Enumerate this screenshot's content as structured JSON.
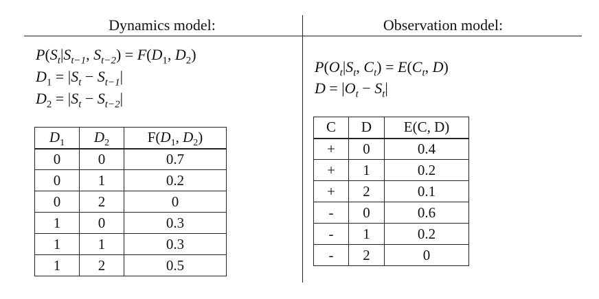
{
  "dynamics": {
    "heading": "Dynamics model:",
    "eq1": "P(St|St−1, St−2) = F(D1, D2)",
    "eq2": "D1 = |St − St−1|",
    "eq3": "D2 = |St − St−2|",
    "table": {
      "headers": [
        "D1",
        "D2",
        "F(D1, D2)"
      ],
      "rows": [
        [
          "0",
          "0",
          "0.7"
        ],
        [
          "0",
          "1",
          "0.2"
        ],
        [
          "0",
          "2",
          "0"
        ],
        [
          "1",
          "0",
          "0.3"
        ],
        [
          "1",
          "1",
          "0.3"
        ],
        [
          "1",
          "2",
          "0.5"
        ]
      ]
    }
  },
  "observation": {
    "heading": "Observation model:",
    "eq1": "P(Ot|St, Ct) = E(Ct, D)",
    "eq2": "D = |Ot − St|",
    "table": {
      "headers": [
        "C",
        "D",
        "E(C, D)"
      ],
      "rows": [
        [
          "+",
          "0",
          "0.4"
        ],
        [
          "+",
          "1",
          "0.2"
        ],
        [
          "+",
          "2",
          "0.1"
        ],
        [
          "-",
          "0",
          "0.6"
        ],
        [
          "-",
          "1",
          "0.2"
        ],
        [
          "-",
          "2",
          "0"
        ]
      ]
    }
  }
}
